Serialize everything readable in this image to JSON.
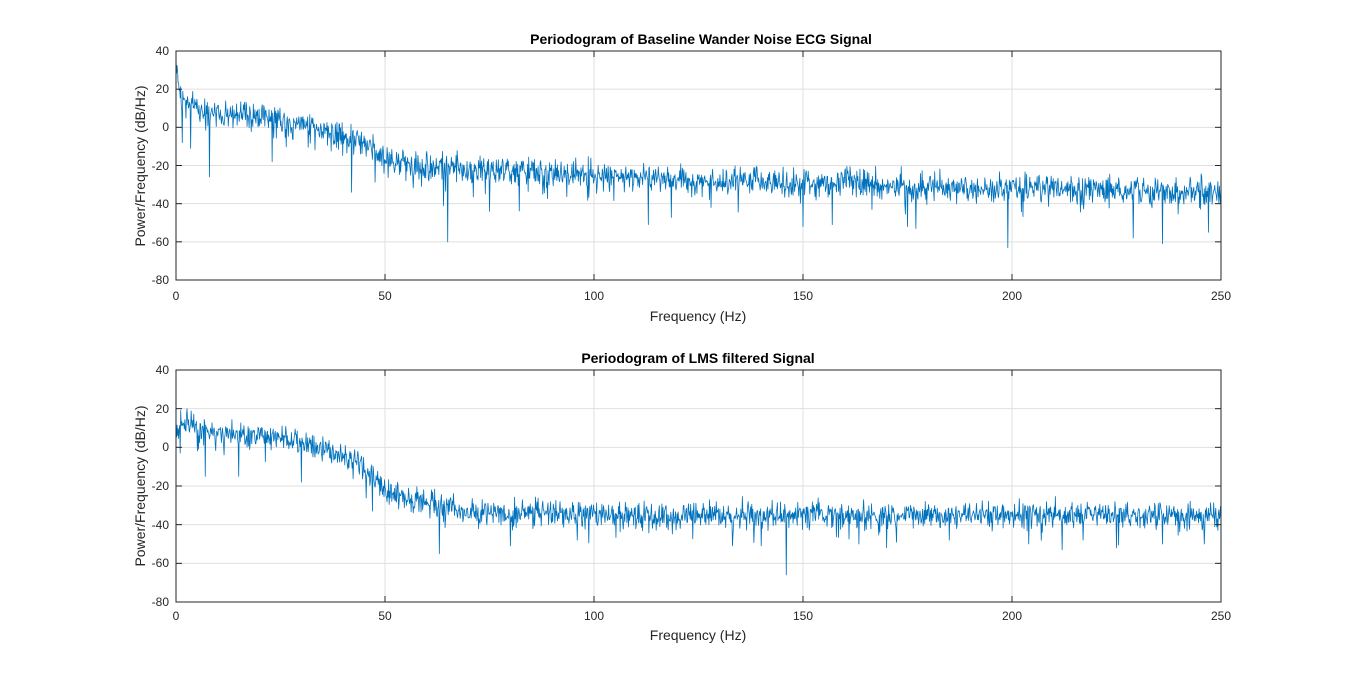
{
  "figure": {
    "background": "#ffffff",
    "line_color": "#0072bd",
    "grid_color": "#dfdfdf",
    "axis_color": "#262626"
  },
  "chart_data": [
    {
      "type": "line",
      "title": "Periodogram of Baseline Wander Noise ECG Signal",
      "xlabel": "Frequency (Hz)",
      "ylabel": "Power/Frequency (dB/Hz)",
      "xlim": [
        0,
        250
      ],
      "ylim": [
        -80,
        40
      ],
      "xticks": [
        0,
        50,
        100,
        150,
        200,
        250
      ],
      "xtick_labels": [
        "0",
        "50",
        "100",
        "150",
        "200",
        "250"
      ],
      "yticks": [
        -80,
        -60,
        -40,
        -20,
        0,
        20,
        40
      ],
      "ytick_labels": [
        "-80",
        "-60",
        "-40",
        "-20",
        "0",
        "20",
        "40"
      ],
      "grid": true,
      "series": [
        {
          "color": "#0072bd",
          "x": [
            0,
            0.5,
            1,
            2,
            3,
            5,
            8,
            10,
            15,
            20,
            25,
            30,
            35,
            40,
            43,
            45,
            47,
            50,
            55,
            60,
            65,
            70,
            80,
            90,
            100,
            110,
            120,
            130,
            140,
            150,
            160,
            170,
            180,
            190,
            200,
            210,
            220,
            230,
            240,
            250
          ],
          "mean": [
            36,
            28,
            18,
            14,
            12,
            10,
            8,
            7,
            7,
            6,
            5,
            2,
            -2,
            -4,
            -6,
            -8,
            -11,
            -17,
            -19,
            -20,
            -21,
            -22,
            -23,
            -24,
            -25,
            -26,
            -27,
            -28,
            -28,
            -29,
            -29,
            -30,
            -31,
            -32,
            -32,
            -32,
            -33,
            -33,
            -33,
            -34
          ],
          "noise_amplitude": 8,
          "dips": [
            [
              1.5,
              -8
            ],
            [
              3.5,
              -11
            ],
            [
              8,
              -26
            ],
            [
              23,
              -18
            ],
            [
              42,
              -34
            ],
            [
              64,
              -41
            ],
            [
              65,
              -60
            ],
            [
              75,
              -44
            ],
            [
              113,
              -51
            ],
            [
              150,
              -52
            ],
            [
              157,
              -51
            ],
            [
              175,
              -52
            ],
            [
              177,
              -53
            ],
            [
              199,
              -63
            ],
            [
              229,
              -58
            ],
            [
              236,
              -61
            ],
            [
              247,
              -55
            ]
          ]
        }
      ]
    },
    {
      "type": "line",
      "title": "Periodogram of LMS filtered Signal",
      "xlabel": "Frequency (Hz)",
      "ylabel": "Power/Frequency (dB/Hz)",
      "xlim": [
        0,
        250
      ],
      "ylim": [
        -80,
        40
      ],
      "xticks": [
        0,
        50,
        100,
        150,
        200,
        250
      ],
      "xtick_labels": [
        "0",
        "50",
        "100",
        "150",
        "200",
        "250"
      ],
      "yticks": [
        -80,
        -60,
        -40,
        -20,
        0,
        20,
        40
      ],
      "ytick_labels": [
        "-80",
        "-60",
        "-40",
        "-20",
        "0",
        "20",
        "40"
      ],
      "grid": true,
      "series": [
        {
          "color": "#0072bd",
          "x": [
            0,
            0.5,
            1,
            2,
            3,
            5,
            8,
            10,
            15,
            20,
            25,
            30,
            35,
            40,
            43,
            45,
            47,
            50,
            52,
            55,
            60,
            65,
            70,
            80,
            90,
            100,
            110,
            120,
            130,
            140,
            150,
            160,
            170,
            180,
            190,
            200,
            210,
            220,
            230,
            240,
            250
          ],
          "mean": [
            5,
            8,
            12,
            14,
            13,
            10,
            8,
            7,
            7,
            6,
            5,
            2,
            -2,
            -4,
            -8,
            -12,
            -16,
            -22,
            -24,
            -26,
            -28,
            -31,
            -33,
            -34,
            -34,
            -35,
            -35,
            -35,
            -35,
            -35,
            -35,
            -35,
            -35,
            -35,
            -35,
            -35,
            -35,
            -35,
            -35,
            -35,
            -35
          ],
          "noise_amplitude": 7,
          "dips": [
            [
              1,
              -3
            ],
            [
              7,
              -15
            ],
            [
              15,
              -15
            ],
            [
              30,
              -18
            ],
            [
              47,
              -33
            ],
            [
              63,
              -55
            ],
            [
              80,
              -51
            ],
            [
              96,
              -48
            ],
            [
              140,
              -51
            ],
            [
              146,
              -66
            ],
            [
              170,
              -52
            ],
            [
              185,
              -48
            ],
            [
              204,
              -50
            ],
            [
              212,
              -53
            ],
            [
              217,
              -48
            ],
            [
              225,
              -52
            ],
            [
              236,
              -50
            ],
            [
              246,
              -50
            ]
          ]
        }
      ]
    }
  ]
}
